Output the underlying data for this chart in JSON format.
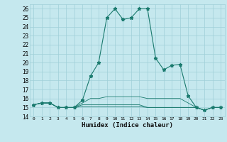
{
  "xlabel": "Humidex (Indice chaleur)",
  "x_values": [
    0,
    1,
    2,
    3,
    4,
    5,
    6,
    7,
    8,
    9,
    10,
    11,
    12,
    13,
    14,
    15,
    16,
    17,
    18,
    19,
    20,
    21,
    22,
    23
  ],
  "series": [
    [
      15.3,
      15.5,
      15.5,
      15.0,
      15.0,
      15.0,
      15.8,
      18.5,
      20.0,
      25.0,
      26.0,
      24.8,
      25.0,
      26.0,
      26.0,
      20.5,
      19.2,
      19.7,
      19.8,
      16.3,
      15.0,
      14.7,
      15.0,
      15.0
    ],
    [
      15.3,
      15.5,
      15.5,
      15.0,
      15.0,
      15.0,
      15.5,
      16.0,
      16.0,
      16.2,
      16.2,
      16.2,
      16.2,
      16.2,
      16.0,
      16.0,
      16.0,
      16.0,
      16.0,
      15.5,
      15.0,
      14.7,
      15.0,
      15.0
    ],
    [
      15.3,
      15.5,
      15.5,
      15.0,
      15.0,
      15.0,
      15.3,
      15.3,
      15.3,
      15.3,
      15.3,
      15.3,
      15.3,
      15.3,
      15.0,
      15.0,
      15.0,
      15.0,
      15.0,
      15.0,
      15.0,
      14.7,
      15.0,
      15.0
    ],
    [
      15.3,
      15.5,
      15.5,
      15.0,
      15.0,
      15.0,
      15.1,
      15.1,
      15.1,
      15.1,
      15.1,
      15.1,
      15.1,
      15.1,
      15.0,
      15.0,
      15.0,
      15.0,
      15.0,
      15.0,
      15.0,
      14.7,
      15.0,
      15.0
    ]
  ],
  "line_color": "#1a7a6e",
  "bg_color": "#c5e8ee",
  "grid_color": "#9fcfd8",
  "ylim": [
    14,
    26.5
  ],
  "yticks": [
    14,
    15,
    16,
    17,
    18,
    19,
    20,
    21,
    22,
    23,
    24,
    25,
    26
  ],
  "xticks": [
    0,
    1,
    2,
    3,
    4,
    5,
    6,
    7,
    8,
    9,
    10,
    11,
    12,
    13,
    14,
    15,
    16,
    17,
    18,
    19,
    20,
    21,
    22,
    23
  ]
}
